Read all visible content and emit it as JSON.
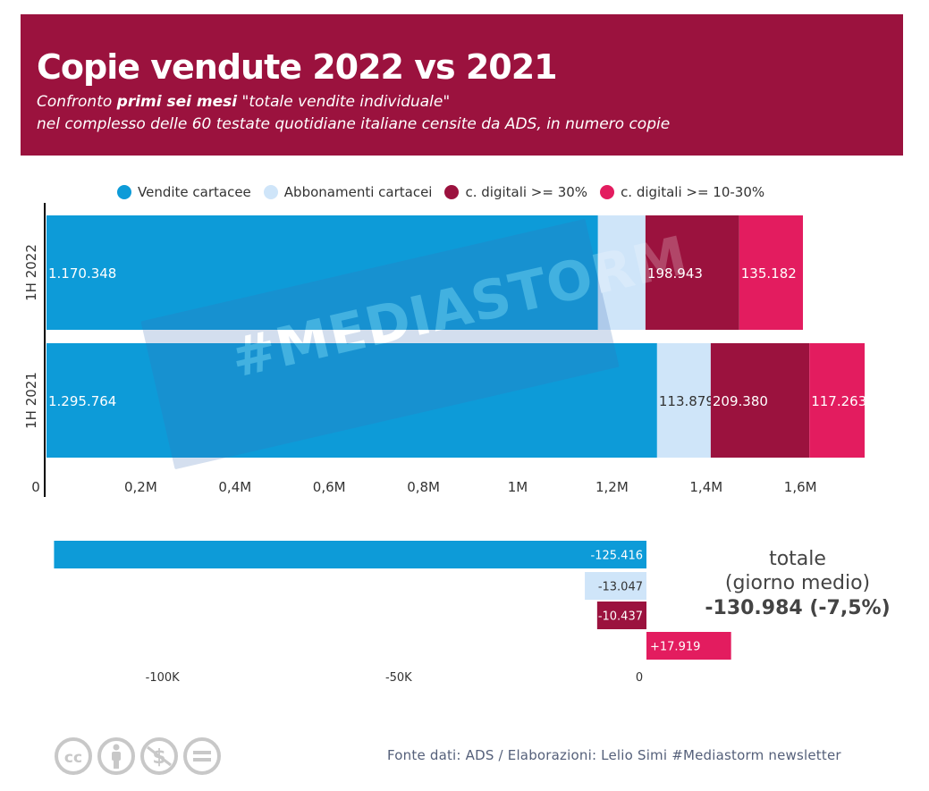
{
  "header": {
    "title": "Copie vendute 2022 vs 2021",
    "subtitle_pre": "Confronto ",
    "subtitle_bold": "primi sei mesi",
    "subtitle_post": " \"totale vendite individuale\"",
    "subtitle_line2": "nel complesso delle 60 testate quotidiane italiane censite da ADS, in numero copie"
  },
  "colors": {
    "header_bg": "#9b123e",
    "vendite_cartacee": "#0d9bd8",
    "abbonamenti_cartacei": "#cfe5f9",
    "digitali_30": "#9b123e",
    "digitali_10_30": "#e31c5f"
  },
  "watermark": {
    "text": "#MEDIASTORM"
  },
  "chart_data": [
    {
      "type": "bar",
      "orientation": "horizontal",
      "stacked": true,
      "categories": [
        "1H 2022",
        "1H 2021"
      ],
      "series": [
        {
          "name": "Vendite cartacee",
          "values": [
            1170348,
            1295764
          ],
          "labels": [
            "1.170.348",
            "1.295.764"
          ]
        },
        {
          "name": "Abbonamenti cartacei",
          "values": [
            100832,
            113879
          ],
          "labels": [
            "",
            "113.879"
          ]
        },
        {
          "name": "c. digitali >= 30%",
          "values": [
            198943,
            209380
          ],
          "labels": [
            "198.943",
            "209.380"
          ]
        },
        {
          "name": "c. digitali >= 10-30%",
          "values": [
            135182,
            117263
          ],
          "labels": [
            "135.182",
            "117.263"
          ]
        }
      ],
      "xlim": [
        0,
        1750000
      ],
      "x_ticks": [
        0,
        200000,
        400000,
        600000,
        800000,
        1000000,
        1200000,
        1400000,
        1600000
      ],
      "x_tick_labels": [
        "0",
        "0,2M",
        "0,4M",
        "0,6M",
        "0,8M",
        "1M",
        "1,2M",
        "1,4M",
        "1,6M"
      ],
      "legend_position": "top",
      "grid": false
    },
    {
      "type": "bar",
      "orientation": "horizontal",
      "categories": [
        "Vendite cartacee",
        "Abbonamenti cartacei",
        "c. digitali >= 30%",
        "c. digitali >= 10-30%"
      ],
      "values": [
        -125416,
        -13047,
        -10437,
        17919
      ],
      "labels": [
        "-125.416",
        "-13.047",
        "-10.437",
        "+17.919"
      ],
      "xlim": [
        -125416,
        19000
      ],
      "x_ticks": [
        -100000,
        -50000,
        0
      ],
      "x_tick_labels": [
        "-100K",
        "-50K",
        "0"
      ],
      "grid": false
    }
  ],
  "totale": {
    "line1": "totale",
    "line2": "(giorno medio)",
    "value": "-130.984 (-7,5%)"
  },
  "footer": {
    "source": "Fonte dati:  ADS / Elaborazioni: Lelio Simi #Mediastorm newsletter",
    "license_icons": [
      "cc-icon",
      "by-icon",
      "nc-icon",
      "nd-icon"
    ]
  }
}
